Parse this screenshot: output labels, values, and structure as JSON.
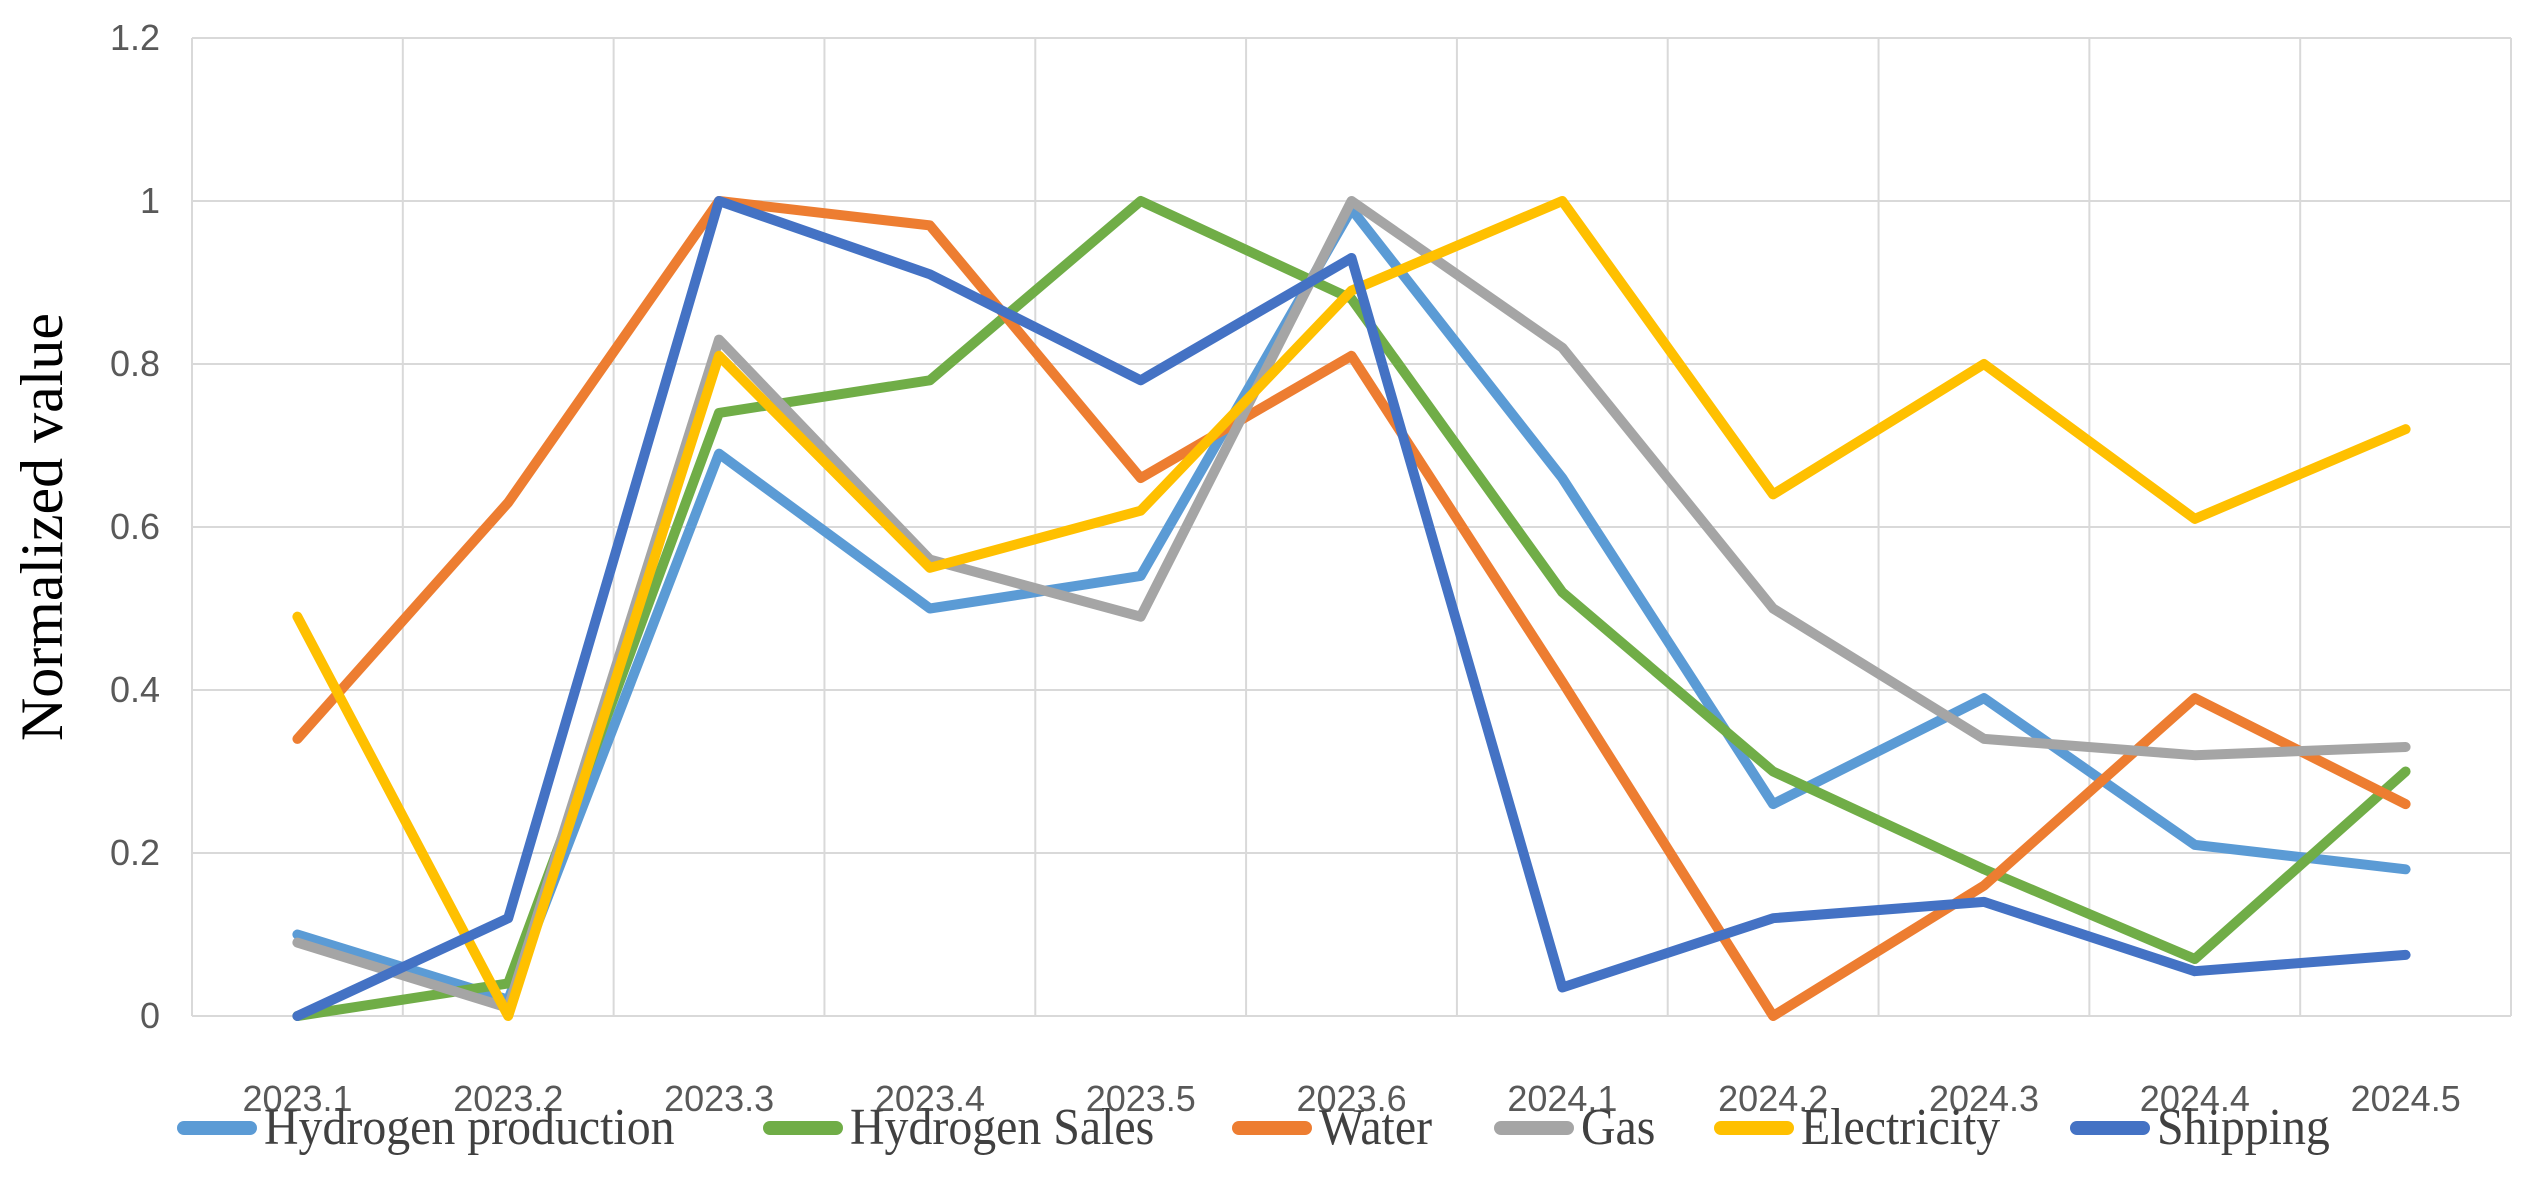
{
  "chart_data": {
    "type": "line",
    "title": "",
    "xlabel": "",
    "ylabel": "Normalized value",
    "ylim": [
      0,
      1.2
    ],
    "y_tick_step": 0.2,
    "y_tick_labels": [
      "0",
      "0.2",
      "0.4",
      "0.6",
      "0.8",
      "1",
      "1.2"
    ],
    "grid": true,
    "legend_position": "bottom",
    "categories": [
      "2023.1",
      "2023.2",
      "2023.3",
      "2023.4",
      "2023.5",
      "2023.6",
      "2024.1",
      "2024.2",
      "2024.3",
      "2024.4",
      "2024.5"
    ],
    "series": [
      {
        "name": "Hydrogen production",
        "color": "#5B9BD5",
        "values": [
          0.1,
          0.02,
          0.69,
          0.5,
          0.54,
          0.99,
          0.66,
          0.26,
          0.39,
          0.21,
          0.18
        ]
      },
      {
        "name": "Hydrogen Sales",
        "color": "#70AD47",
        "values": [
          0.0,
          0.04,
          0.74,
          0.78,
          1.0,
          0.88,
          0.52,
          0.3,
          0.18,
          0.07,
          0.3
        ]
      },
      {
        "name": "Water",
        "color": "#ED7D31",
        "values": [
          0.34,
          0.63,
          1.0,
          0.97,
          0.66,
          0.81,
          0.41,
          0.0,
          0.16,
          0.39,
          0.26
        ]
      },
      {
        "name": "Gas",
        "color": "#A5A5A5",
        "values": [
          0.09,
          0.01,
          0.83,
          0.56,
          0.49,
          1.0,
          0.82,
          0.5,
          0.34,
          0.32,
          0.33
        ]
      },
      {
        "name": "Electricity",
        "color": "#FFC000",
        "values": [
          0.49,
          0.0,
          0.81,
          0.55,
          0.62,
          0.89,
          1.0,
          0.64,
          0.8,
          0.61,
          0.72
        ]
      },
      {
        "name": "Shipping",
        "color": "#4472C4",
        "values": [
          0.0,
          0.12,
          1.0,
          0.91,
          0.78,
          0.93,
          0.035,
          0.12,
          0.14,
          0.055,
          0.075
        ]
      }
    ]
  },
  "styles": {
    "background": "#FFFFFF",
    "grid_color": "#D9D9D9",
    "tick_label_color": "#595959",
    "legend_text_color": "#404040",
    "axis_title_color": "#000000",
    "line_width": 10
  }
}
